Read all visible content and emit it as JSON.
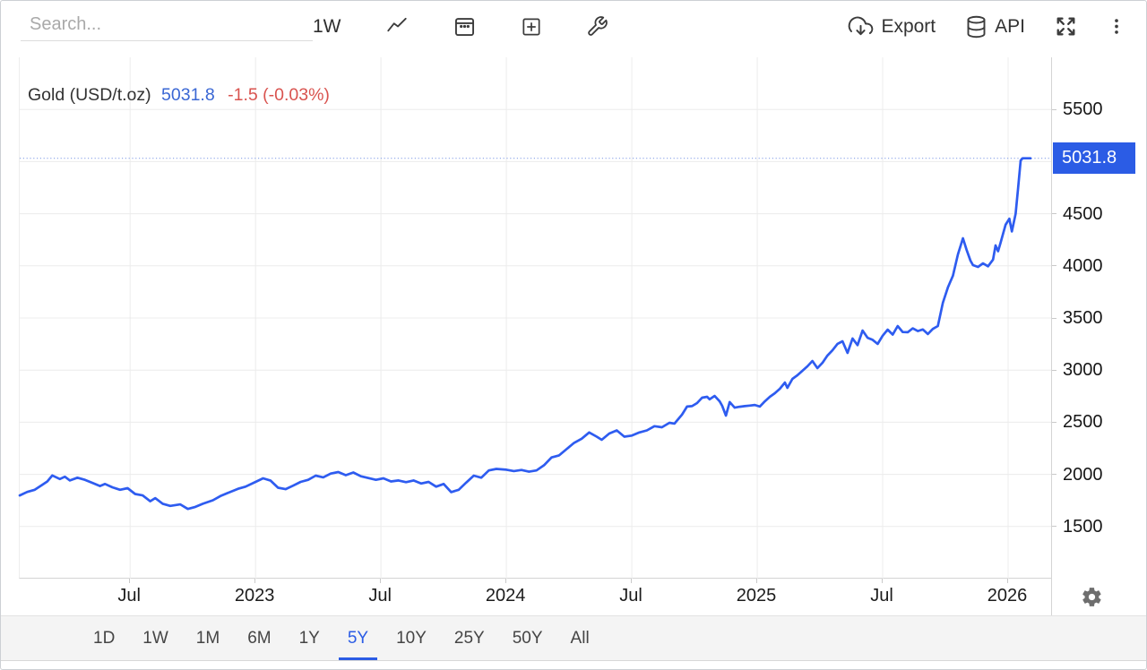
{
  "toolbar": {
    "search_placeholder": "Search...",
    "interval": "1W",
    "export_label": "Export",
    "api_label": "API"
  },
  "header": {
    "instrument": "Gold (USD/t.oz)",
    "price": "5031.8",
    "change": "-1.5 (-0.03%)"
  },
  "price_scale": {
    "current_label": "5031.8"
  },
  "ranges": {
    "items": [
      "1D",
      "1W",
      "1M",
      "6M",
      "1Y",
      "5Y",
      "10Y",
      "25Y",
      "50Y",
      "All"
    ],
    "selected": "5Y"
  },
  "colors": {
    "accent_blue": "#2b5ce5",
    "line_blue": "#2e5cf0",
    "title_price_blue": "#3a67d4",
    "change_red": "#d9534f",
    "grid": "#ececec",
    "axis_border": "#d4d4d4",
    "dotted_line": "#8aa4e8",
    "range_bar_bg": "#f4f4f4",
    "icon_gray": "#3c3c3c",
    "gear_gray": "#6e6e6e"
  },
  "chart_data": {
    "type": "line",
    "title": "Gold (USD/t.oz)",
    "last_price": 5031.8,
    "change": -1.5,
    "change_percent": -0.03,
    "grid": true,
    "ylim": [
      1000,
      6000
    ],
    "xlim": [
      2022.06,
      2026.175
    ],
    "grid_values": [
      1500,
      2000,
      2500,
      3000,
      3500,
      4000,
      4500,
      5000,
      5500
    ],
    "y_tick_labels": [
      5500,
      4500,
      4000,
      3500,
      3000,
      2500,
      2000,
      1500
    ],
    "x_ticks": [
      {
        "pos": 2022.5,
        "label": "Jul"
      },
      {
        "pos": 2023.0,
        "label": "2023"
      },
      {
        "pos": 2023.5,
        "label": "Jul"
      },
      {
        "pos": 2024.0,
        "label": "2024"
      },
      {
        "pos": 2024.5,
        "label": "Jul"
      },
      {
        "pos": 2025.0,
        "label": "2025"
      },
      {
        "pos": 2025.5,
        "label": "Jul"
      },
      {
        "pos": 2026.0,
        "label": "2026"
      }
    ],
    "series": [
      {
        "name": "Gold (USD/t.oz)",
        "points": [
          [
            2022.06,
            1798
          ],
          [
            2022.09,
            1832
          ],
          [
            2022.12,
            1852
          ],
          [
            2022.15,
            1900
          ],
          [
            2022.17,
            1932
          ],
          [
            2022.19,
            1990
          ],
          [
            2022.22,
            1955
          ],
          [
            2022.24,
            1978
          ],
          [
            2022.26,
            1942
          ],
          [
            2022.29,
            1968
          ],
          [
            2022.32,
            1948
          ],
          [
            2022.35,
            1918
          ],
          [
            2022.38,
            1888
          ],
          [
            2022.4,
            1908
          ],
          [
            2022.43,
            1875
          ],
          [
            2022.46,
            1852
          ],
          [
            2022.49,
            1868
          ],
          [
            2022.52,
            1812
          ],
          [
            2022.55,
            1798
          ],
          [
            2022.58,
            1742
          ],
          [
            2022.6,
            1772
          ],
          [
            2022.63,
            1718
          ],
          [
            2022.66,
            1698
          ],
          [
            2022.7,
            1712
          ],
          [
            2022.73,
            1668
          ],
          [
            2022.76,
            1688
          ],
          [
            2022.79,
            1718
          ],
          [
            2022.83,
            1752
          ],
          [
            2022.86,
            1792
          ],
          [
            2022.89,
            1822
          ],
          [
            2022.93,
            1862
          ],
          [
            2022.96,
            1882
          ],
          [
            2023.0,
            1928
          ],
          [
            2023.03,
            1962
          ],
          [
            2023.06,
            1940
          ],
          [
            2023.09,
            1872
          ],
          [
            2023.12,
            1858
          ],
          [
            2023.15,
            1892
          ],
          [
            2023.18,
            1928
          ],
          [
            2023.21,
            1948
          ],
          [
            2023.24,
            1988
          ],
          [
            2023.27,
            1972
          ],
          [
            2023.3,
            2008
          ],
          [
            2023.33,
            2022
          ],
          [
            2023.36,
            1992
          ],
          [
            2023.39,
            2018
          ],
          [
            2023.42,
            1982
          ],
          [
            2023.45,
            1965
          ],
          [
            2023.48,
            1948
          ],
          [
            2023.51,
            1962
          ],
          [
            2023.54,
            1932
          ],
          [
            2023.57,
            1942
          ],
          [
            2023.6,
            1925
          ],
          [
            2023.63,
            1942
          ],
          [
            2023.66,
            1912
          ],
          [
            2023.69,
            1928
          ],
          [
            2023.72,
            1882
          ],
          [
            2023.75,
            1908
          ],
          [
            2023.78,
            1830
          ],
          [
            2023.81,
            1852
          ],
          [
            2023.84,
            1922
          ],
          [
            2023.87,
            1988
          ],
          [
            2023.9,
            1968
          ],
          [
            2023.93,
            2038
          ],
          [
            2023.96,
            2052
          ],
          [
            2024.0,
            2045
          ],
          [
            2024.03,
            2032
          ],
          [
            2024.06,
            2042
          ],
          [
            2024.09,
            2026
          ],
          [
            2024.12,
            2038
          ],
          [
            2024.15,
            2088
          ],
          [
            2024.18,
            2162
          ],
          [
            2024.21,
            2182
          ],
          [
            2024.24,
            2242
          ],
          [
            2024.27,
            2302
          ],
          [
            2024.3,
            2342
          ],
          [
            2024.33,
            2402
          ],
          [
            2024.36,
            2362
          ],
          [
            2024.38,
            2332
          ],
          [
            2024.41,
            2392
          ],
          [
            2024.44,
            2422
          ],
          [
            2024.47,
            2362
          ],
          [
            2024.5,
            2372
          ],
          [
            2024.53,
            2402
          ],
          [
            2024.56,
            2422
          ],
          [
            2024.59,
            2462
          ],
          [
            2024.62,
            2452
          ],
          [
            2024.65,
            2495
          ],
          [
            2024.67,
            2487
          ],
          [
            2024.7,
            2573
          ],
          [
            2024.72,
            2650
          ],
          [
            2024.74,
            2655
          ],
          [
            2024.76,
            2684
          ],
          [
            2024.78,
            2735
          ],
          [
            2024.8,
            2744
          ],
          [
            2024.81,
            2720
          ],
          [
            2024.83,
            2753
          ],
          [
            2024.85,
            2700
          ],
          [
            2024.86,
            2658
          ],
          [
            2024.875,
            2564
          ],
          [
            2024.89,
            2693
          ],
          [
            2024.91,
            2640
          ],
          [
            2024.93,
            2649
          ],
          [
            2024.95,
            2655
          ],
          [
            2024.97,
            2660
          ],
          [
            2024.99,
            2666
          ],
          [
            2025.01,
            2650
          ],
          [
            2025.03,
            2700
          ],
          [
            2025.05,
            2744
          ],
          [
            2025.07,
            2778
          ],
          [
            2025.09,
            2821
          ],
          [
            2025.11,
            2881
          ],
          [
            2025.12,
            2830
          ],
          [
            2025.14,
            2916
          ],
          [
            2025.16,
            2950
          ],
          [
            2025.18,
            2993
          ],
          [
            2025.2,
            3036
          ],
          [
            2025.22,
            3088
          ],
          [
            2025.24,
            3019
          ],
          [
            2025.26,
            3070
          ],
          [
            2025.28,
            3140
          ],
          [
            2025.3,
            3190
          ],
          [
            2025.32,
            3252
          ],
          [
            2025.34,
            3277
          ],
          [
            2025.36,
            3165
          ],
          [
            2025.38,
            3303
          ],
          [
            2025.4,
            3240
          ],
          [
            2025.42,
            3380
          ],
          [
            2025.44,
            3310
          ],
          [
            2025.46,
            3290
          ],
          [
            2025.48,
            3251
          ],
          [
            2025.5,
            3330
          ],
          [
            2025.52,
            3388
          ],
          [
            2025.54,
            3340
          ],
          [
            2025.56,
            3423
          ],
          [
            2025.58,
            3365
          ],
          [
            2025.6,
            3363
          ],
          [
            2025.62,
            3400
          ],
          [
            2025.64,
            3375
          ],
          [
            2025.66,
            3390
          ],
          [
            2025.68,
            3346
          ],
          [
            2025.7,
            3395
          ],
          [
            2025.72,
            3423
          ],
          [
            2025.74,
            3646
          ],
          [
            2025.76,
            3793
          ],
          [
            2025.78,
            3905
          ],
          [
            2025.8,
            4110
          ],
          [
            2025.82,
            4265
          ],
          [
            2025.835,
            4150
          ],
          [
            2025.85,
            4050
          ],
          [
            2025.86,
            4007
          ],
          [
            2025.88,
            3990
          ],
          [
            2025.9,
            4024
          ],
          [
            2025.92,
            3996
          ],
          [
            2025.94,
            4060
          ],
          [
            2025.95,
            4196
          ],
          [
            2025.96,
            4140
          ],
          [
            2025.97,
            4222
          ],
          [
            2025.98,
            4308
          ],
          [
            2025.99,
            4394
          ],
          [
            2026.005,
            4452
          ],
          [
            2026.015,
            4330
          ],
          [
            2026.03,
            4500
          ],
          [
            2026.04,
            4750
          ],
          [
            2026.05,
            5010
          ],
          [
            2026.058,
            5031.8
          ],
          [
            2026.089,
            5031.8
          ]
        ]
      }
    ]
  }
}
